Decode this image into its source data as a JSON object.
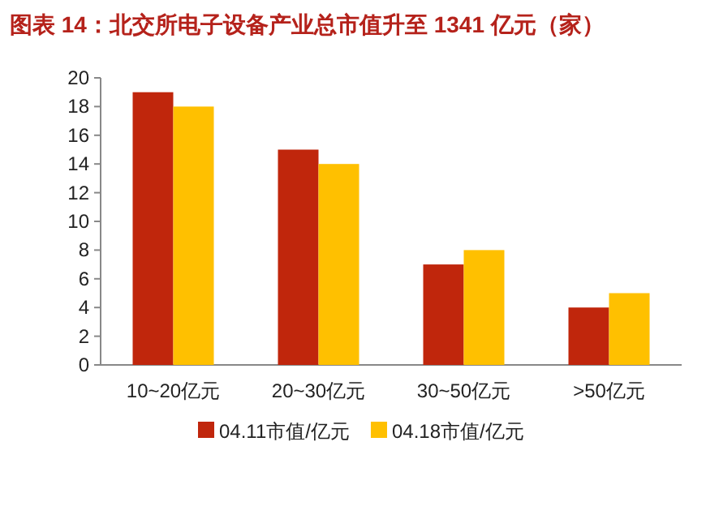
{
  "chart_data": {
    "type": "bar",
    "title": "图表 14：北交所电子设备产业总市值升至 1341 亿元（家）",
    "categories": [
      "10~20亿元",
      "20~30亿元",
      "30~50亿元",
      ">50亿元"
    ],
    "series": [
      {
        "name": "04.11市值/亿元",
        "color": "#c0260c",
        "values": [
          19,
          15,
          7,
          4
        ]
      },
      {
        "name": "04.18市值/亿元",
        "color": "#ffc000",
        "values": [
          18,
          14,
          8,
          5
        ]
      }
    ],
    "ylim": [
      0,
      20
    ],
    "yticks": [
      0,
      2,
      4,
      6,
      8,
      10,
      12,
      14,
      16,
      18,
      20
    ],
    "grid": false,
    "legend": "bottom"
  }
}
